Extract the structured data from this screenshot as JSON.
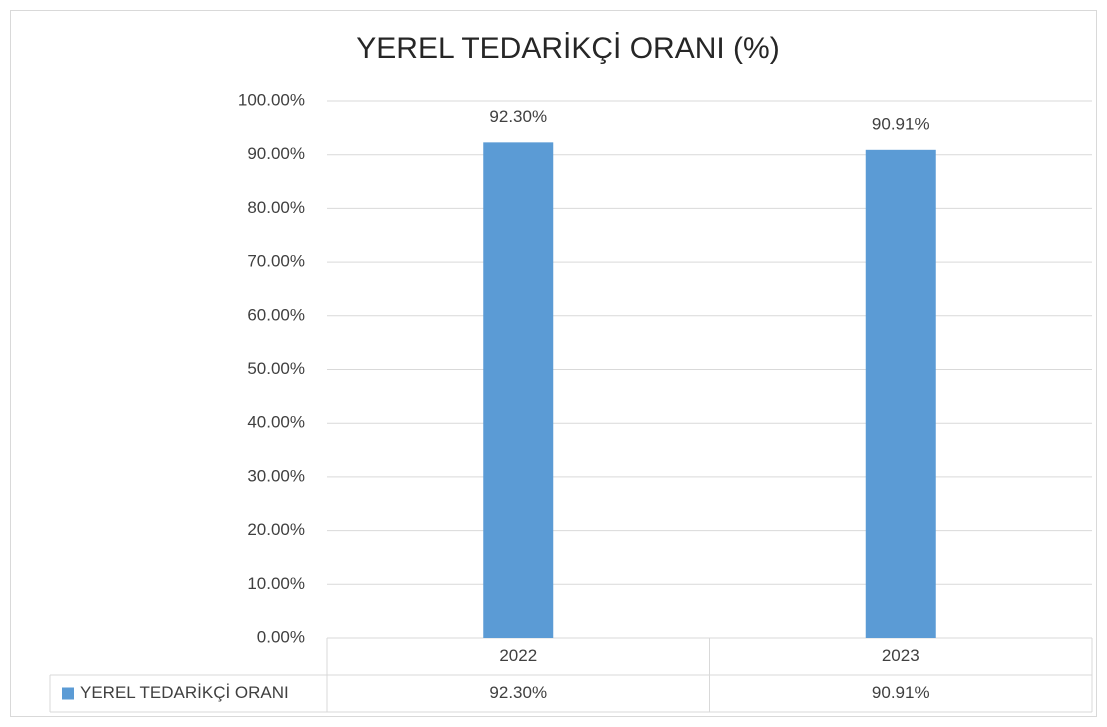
{
  "chart_data": {
    "type": "bar",
    "title": "YEREL TEDARİKÇİ ORANI (%)",
    "categories": [
      "2022",
      "2023"
    ],
    "series": [
      {
        "name": "YEREL TEDARİKÇİ ORANI",
        "color": "#5b9bd5",
        "values": [
          92.3,
          90.91
        ],
        "value_labels": [
          "92.30%",
          "90.91%"
        ]
      }
    ],
    "ylim": [
      0,
      100
    ],
    "yticks": [
      {
        "value": 0,
        "label": "0.00%"
      },
      {
        "value": 10,
        "label": "10.00%"
      },
      {
        "value": 20,
        "label": "20.00%"
      },
      {
        "value": 30,
        "label": "30.00%"
      },
      {
        "value": 40,
        "label": "40.00%"
      },
      {
        "value": 50,
        "label": "50.00%"
      },
      {
        "value": 60,
        "label": "60.00%"
      },
      {
        "value": 70,
        "label": "70.00%"
      },
      {
        "value": 80,
        "label": "80.00%"
      },
      {
        "value": 90,
        "label": "90.00%"
      },
      {
        "value": 100,
        "label": "100.00%"
      }
    ],
    "grid": true,
    "data_table": true
  }
}
